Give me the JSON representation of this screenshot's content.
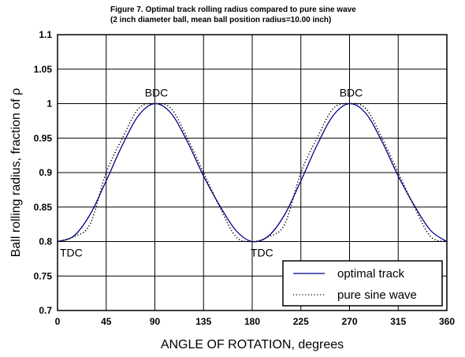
{
  "chart_data": {
    "type": "line",
    "title": "Figure 7.  Optimal track rolling radius compared to pure sine wave",
    "subtitle": "(2 inch diameter ball, mean ball position radius=10.00 inch)",
    "xlabel": "ANGLE OF ROTATION, degrees",
    "ylabel": "Ball rolling radius, fraction of ρ",
    "xlim": [
      0,
      360
    ],
    "ylim": [
      0.7,
      1.1
    ],
    "xticks": [
      0,
      45,
      90,
      135,
      180,
      225,
      270,
      315,
      360
    ],
    "yticks": [
      0.7,
      0.75,
      0.8,
      0.85,
      0.9,
      0.95,
      1,
      1.05,
      1.1
    ],
    "xtick_labels": [
      "0",
      "45",
      "90",
      "135",
      "180",
      "225",
      "270",
      "315",
      "360"
    ],
    "ytick_labels": [
      "0.7",
      "0.75",
      "0.8",
      "0.85",
      "0.9",
      "0.95",
      "1",
      "1.05",
      "1.1"
    ],
    "grid": true,
    "legend_position": "bottom-right",
    "series": [
      {
        "name": "optimal track",
        "color": "#00008b",
        "style": "solid",
        "x": [
          0,
          15,
          30,
          45,
          60,
          75,
          90,
          105,
          120,
          135,
          150,
          165,
          180,
          195,
          210,
          225,
          240,
          255,
          270,
          285,
          300,
          315,
          330,
          345,
          360
        ],
        "y": [
          0.8,
          0.808,
          0.839,
          0.888,
          0.94,
          0.983,
          1.0,
          0.986,
          0.945,
          0.895,
          0.852,
          0.816,
          0.8,
          0.808,
          0.839,
          0.888,
          0.94,
          0.983,
          1.0,
          0.986,
          0.945,
          0.895,
          0.852,
          0.816,
          0.8
        ]
      },
      {
        "name": "pure sine wave",
        "color": "#000000",
        "style": "dotted",
        "x": [
          0,
          15,
          30,
          45,
          60,
          75,
          90,
          105,
          120,
          135,
          150,
          165,
          180,
          195,
          210,
          225,
          240,
          255,
          270,
          285,
          300,
          315,
          330,
          345,
          360
        ],
        "y": [
          0.8,
          0.807,
          0.825,
          0.9,
          0.95,
          0.993,
          1.0,
          0.993,
          0.95,
          0.9,
          0.85,
          0.807,
          0.8,
          0.807,
          0.825,
          0.9,
          0.95,
          0.993,
          1.0,
          0.993,
          0.95,
          0.9,
          0.85,
          0.807,
          0.8
        ]
      }
    ],
    "annotations": [
      {
        "text": "BDC",
        "x": 90,
        "y": 1.0
      },
      {
        "text": "BDC",
        "x": 270,
        "y": 1.0
      },
      {
        "text": "TDC",
        "x": 0,
        "y": 0.8
      },
      {
        "text": "TDC",
        "x": 180,
        "y": 0.8
      }
    ]
  }
}
